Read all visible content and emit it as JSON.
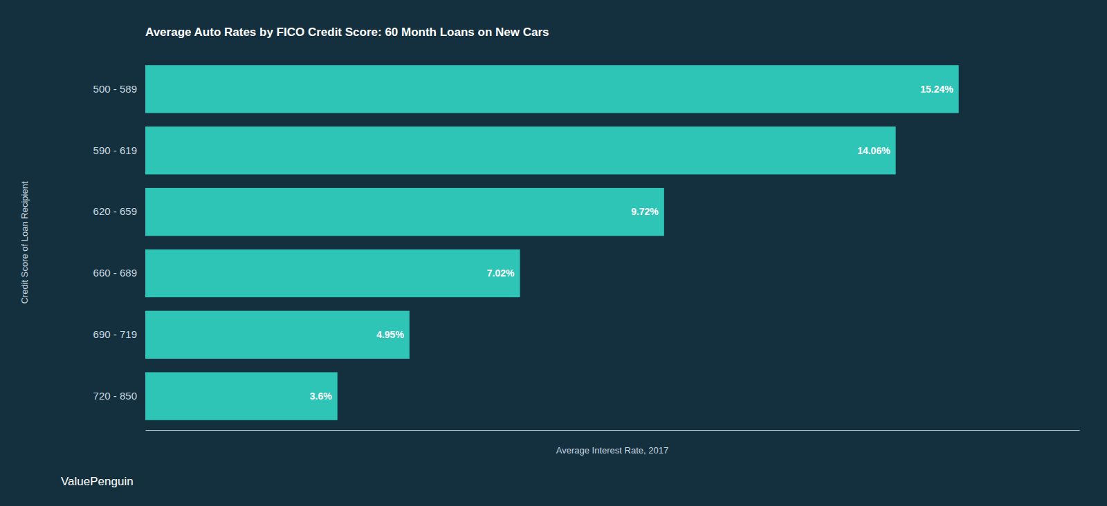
{
  "chart_data": {
    "type": "bar",
    "orientation": "horizontal",
    "title": "Average Auto Rates by FICO Credit Score: 60 Month Loans on New Cars",
    "categories": [
      "500 - 589",
      "590 - 619",
      "620 - 659",
      "660 - 689",
      "690 - 719",
      "720 - 850"
    ],
    "values": [
      15.24,
      14.06,
      9.72,
      7.02,
      4.95,
      3.6
    ],
    "value_labels": [
      "15.24%",
      "14.06%",
      "9.72%",
      "7.02%",
      "4.95%",
      "3.6%"
    ],
    "data_labels": true,
    "color": "#2ec4b6",
    "xlabel": "Average Interest Rate, 2017",
    "ylabel": "Credit Score of Loan Recipient",
    "xlim": [
      0,
      17.5
    ],
    "xticks": [],
    "tick_labels": "y",
    "grid": false,
    "annotations": [
      "ValuePenguin"
    ]
  }
}
